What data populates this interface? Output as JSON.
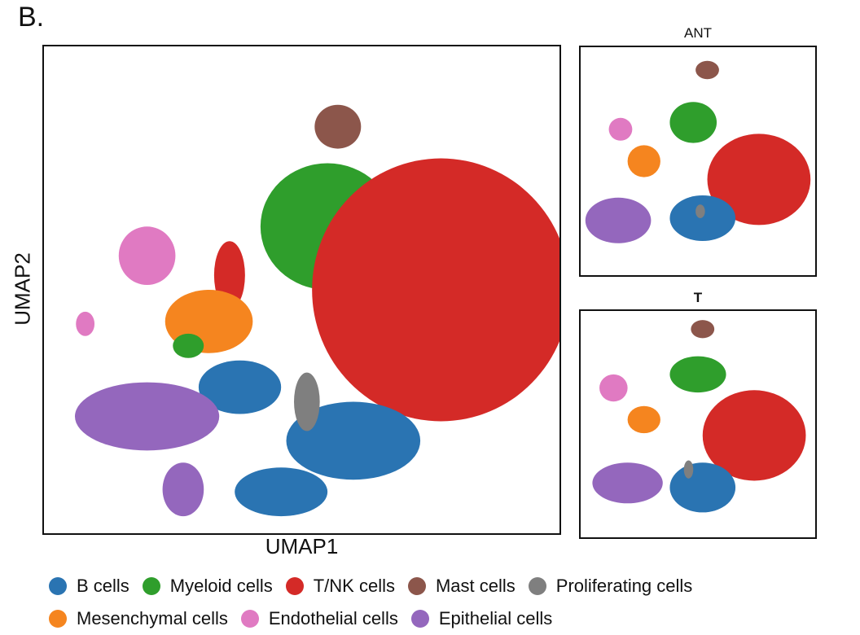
{
  "panel_label": "B.",
  "chart_data": [
    {
      "type": "scatter",
      "title": "",
      "xlabel": "UMAP1",
      "ylabel": "UMAP2",
      "xlim": [
        0,
        100
      ],
      "ylim": [
        0,
        100
      ],
      "grid": false,
      "ticks": false,
      "legend_position": "bottom",
      "series": [
        {
          "name": "B cells",
          "color": "#2a74b2"
        },
        {
          "name": "Myeloid cells",
          "color": "#2f9e2c"
        },
        {
          "name": "T/NK cells",
          "color": "#d42a27"
        },
        {
          "name": "Mast cells",
          "color": "#8c564b"
        },
        {
          "name": "Proliferating cells",
          "color": "#7f7f7f"
        },
        {
          "name": "Mesenchymal cells",
          "color": "#f5851f"
        },
        {
          "name": "Endothelial cells",
          "color": "#e07ac2"
        },
        {
          "name": "Epithelial cells",
          "color": "#9467bd"
        }
      ],
      "clusters": [
        {
          "cluster": "Mast cells",
          "x": 57,
          "y": 83.5
        },
        {
          "cluster": "Myeloid cells",
          "x": 55,
          "y": 63
        },
        {
          "cluster": "T/NK cells",
          "x": 77,
          "y": 50
        },
        {
          "cluster": "T/NK cells",
          "x": 36,
          "y": 53
        },
        {
          "cluster": "Endothelial cells",
          "x": 20,
          "y": 57
        },
        {
          "cluster": "Endothelial cells",
          "x": 8,
          "y": 43
        },
        {
          "cluster": "Mesenchymal cells",
          "x": 32,
          "y": 43.5
        },
        {
          "cluster": "Myeloid cells",
          "x": 28,
          "y": 38.5
        },
        {
          "cluster": "B cells",
          "x": 38,
          "y": 30
        },
        {
          "cluster": "B cells",
          "x": 60,
          "y": 19
        },
        {
          "cluster": "B cells",
          "x": 46,
          "y": 8.5
        },
        {
          "cluster": "Proliferating cells",
          "x": 51,
          "y": 27
        },
        {
          "cluster": "Epithelial cells",
          "x": 20,
          "y": 24
        },
        {
          "cluster": "Epithelial cells",
          "x": 27,
          "y": 9
        }
      ]
    },
    {
      "type": "scatter",
      "title": "ANT",
      "grid": false,
      "ticks": false,
      "clusters": [
        {
          "cluster": "Mast cells",
          "x": 54,
          "y": 90
        },
        {
          "cluster": "Myeloid cells",
          "x": 48,
          "y": 67
        },
        {
          "cluster": "T/NK cells",
          "x": 76,
          "y": 42
        },
        {
          "cluster": "Endothelial cells",
          "x": 17,
          "y": 64
        },
        {
          "cluster": "Mesenchymal cells",
          "x": 27,
          "y": 50
        },
        {
          "cluster": "B cells",
          "x": 52,
          "y": 25
        },
        {
          "cluster": "Proliferating cells",
          "x": 51,
          "y": 28
        },
        {
          "cluster": "Epithelial cells",
          "x": 16,
          "y": 24
        }
      ]
    },
    {
      "type": "scatter",
      "title": "T",
      "grid": false,
      "ticks": false,
      "clusters": [
        {
          "cluster": "Mast cells",
          "x": 52,
          "y": 92
        },
        {
          "cluster": "Myeloid cells",
          "x": 50,
          "y": 72
        },
        {
          "cluster": "T/NK cells",
          "x": 74,
          "y": 45
        },
        {
          "cluster": "Endothelial cells",
          "x": 14,
          "y": 66
        },
        {
          "cluster": "Mesenchymal cells",
          "x": 27,
          "y": 52
        },
        {
          "cluster": "B cells",
          "x": 52,
          "y": 22
        },
        {
          "cluster": "Proliferating cells",
          "x": 46,
          "y": 30
        },
        {
          "cluster": "Epithelial cells",
          "x": 20,
          "y": 24
        }
      ]
    }
  ]
}
